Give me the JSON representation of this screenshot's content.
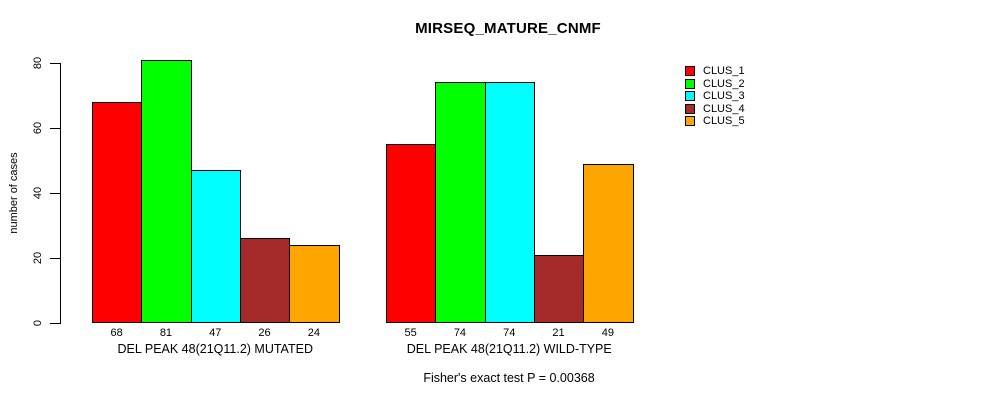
{
  "title": "MIRSEQ_MATURE_CNMF",
  "footer_annotation": "Fisher's exact test P = 0.00368",
  "axis": {
    "y_label": "number of cases",
    "y_ticks": [
      0,
      20,
      40,
      60,
      80
    ]
  },
  "colors": {
    "background": "#FFFFFF",
    "axis_and_text": "#000000",
    "clus_1": "#FF0000",
    "clus_2": "#00FF00",
    "clus_3": "#00FFFF",
    "clus_4": "#A52A2A",
    "clus_5": "#FFA500"
  },
  "chart_data": {
    "type": "bar",
    "title": "MIRSEQ_MATURE_CNMF",
    "xlabel": "",
    "ylabel": "number of cases",
    "ylim": [
      0,
      80
    ],
    "yticks": [
      0,
      20,
      40,
      60,
      80
    ],
    "grid": false,
    "bar_value_labels": true,
    "legend_position": "right-outside-top",
    "annotation": "Fisher's exact test P = 0.00368",
    "categories": [
      "DEL PEAK 48(21Q11.2) MUTATED",
      "DEL PEAK 48(21Q11.2) WILD-TYPE"
    ],
    "series": [
      {
        "name": "CLUS_1",
        "color": "#FF0000",
        "values": [
          68,
          55
        ]
      },
      {
        "name": "CLUS_2",
        "color": "#00FF00",
        "values": [
          81,
          74
        ]
      },
      {
        "name": "CLUS_3",
        "color": "#00FFFF",
        "values": [
          47,
          74
        ]
      },
      {
        "name": "CLUS_4",
        "color": "#A52A2A",
        "values": [
          26,
          21
        ]
      },
      {
        "name": "CLUS_5",
        "color": "#FFA500",
        "values": [
          24,
          49
        ]
      }
    ]
  }
}
